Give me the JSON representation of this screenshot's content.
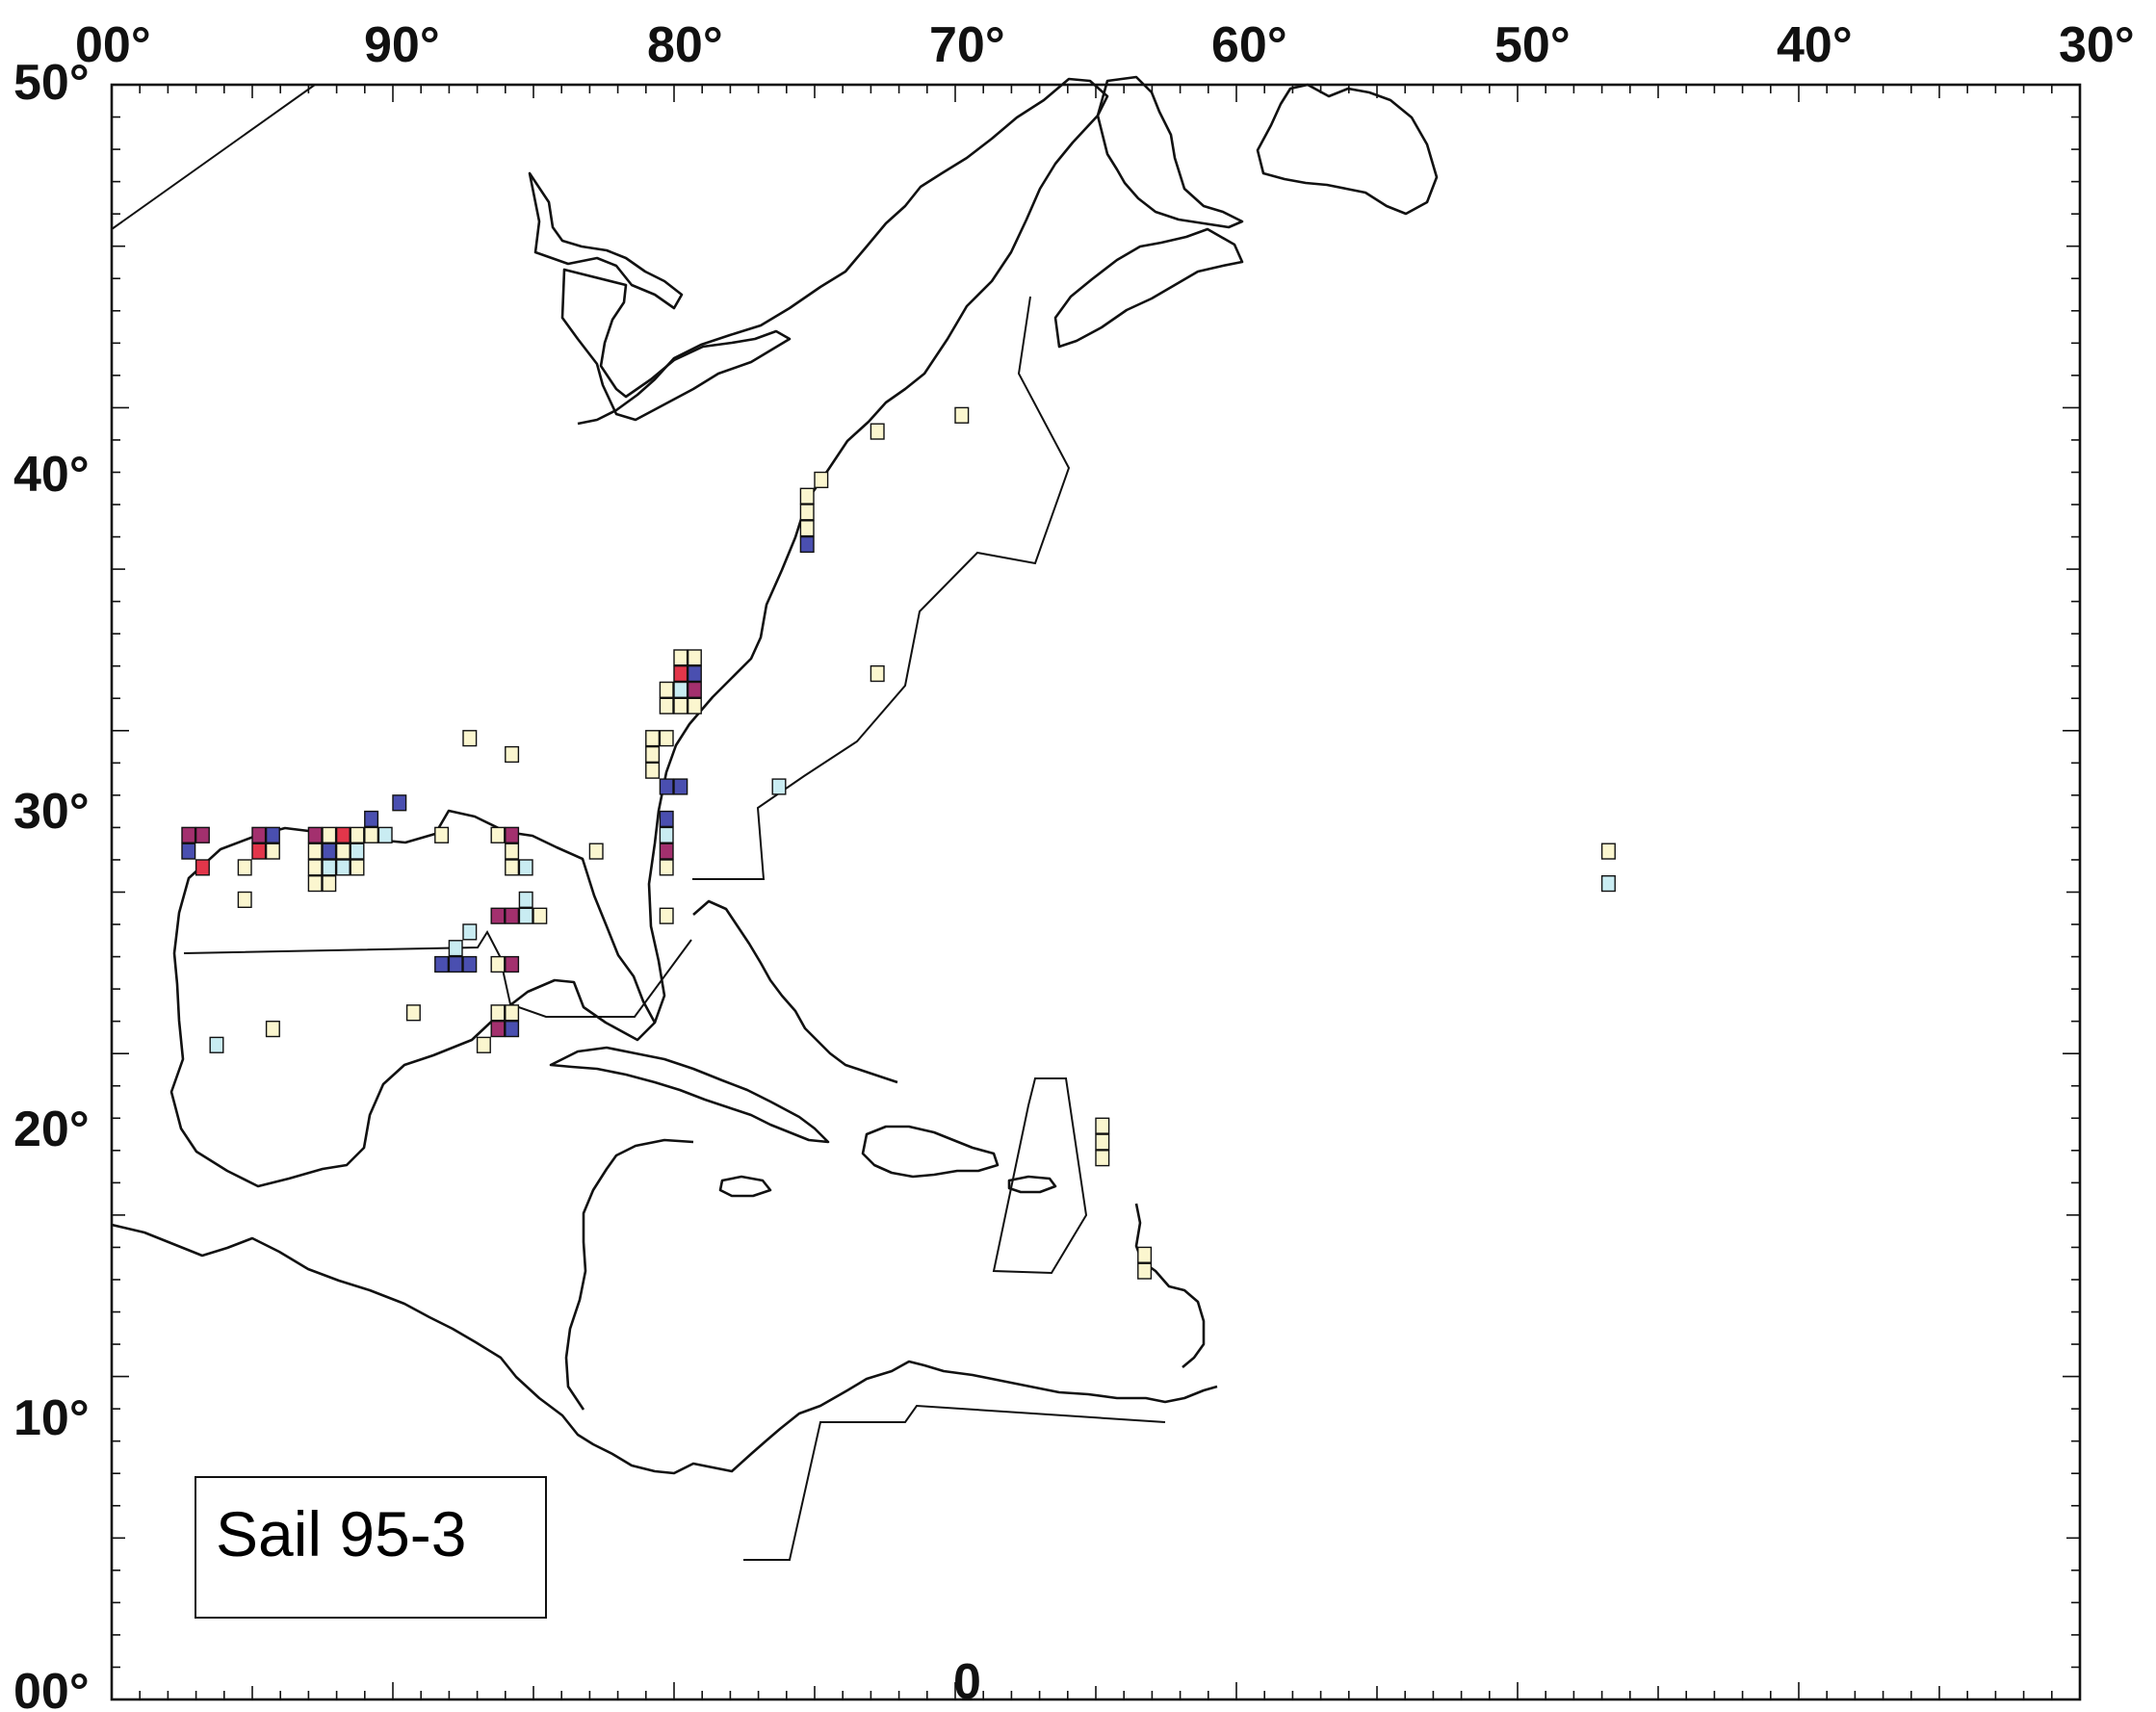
{
  "map": {
    "top_labels": [
      "00°",
      "90°",
      "80°",
      "70°",
      "60°",
      "50°",
      "40°",
      "30°"
    ],
    "left_labels": [
      "50°",
      "40°",
      "30°",
      "20°",
      "10°",
      "00°"
    ],
    "bottom_center_label": "0",
    "legend_title": "Sail 95-3",
    "colors": {
      "pale_yellow": "#fbf6cf",
      "light_blue": "#c9ecf2",
      "blue": "#4a4fb0",
      "red": "#e2364a",
      "magenta": "#a3306e",
      "outline": "#111111"
    }
  },
  "chart_data": {
    "type": "map-grid",
    "extent": {
      "lon": [
        -100,
        -30
      ],
      "lat": [
        0,
        50
      ]
    },
    "cell_size_deg": 0.5,
    "cells": [
      [
        -97.5,
        26.5,
        "magenta"
      ],
      [
        -97,
        26.5,
        "magenta"
      ],
      [
        -97.5,
        26,
        "blue"
      ],
      [
        -97,
        25.5,
        "red"
      ],
      [
        -95,
        26.5,
        "magenta"
      ],
      [
        -94.5,
        26.5,
        "blue"
      ],
      [
        -95,
        26,
        "red"
      ],
      [
        -94.5,
        26,
        "pale_yellow"
      ],
      [
        -95.5,
        25.5,
        "pale_yellow"
      ],
      [
        -93,
        26.5,
        "magenta"
      ],
      [
        -92.5,
        26.5,
        "pale_yellow"
      ],
      [
        -92,
        26.5,
        "red"
      ],
      [
        -91.5,
        26.5,
        "pale_yellow"
      ],
      [
        -93,
        26,
        "pale_yellow"
      ],
      [
        -92.5,
        26,
        "blue"
      ],
      [
        -92,
        26,
        "pale_yellow"
      ],
      [
        -91.5,
        26,
        "light_blue"
      ],
      [
        -93,
        25.5,
        "pale_yellow"
      ],
      [
        -92.5,
        25.5,
        "light_blue"
      ],
      [
        -92,
        25.5,
        "light_blue"
      ],
      [
        -91.5,
        25.5,
        "pale_yellow"
      ],
      [
        -91,
        27,
        "blue"
      ],
      [
        -91,
        26.5,
        "pale_yellow"
      ],
      [
        -90.5,
        26.5,
        "light_blue"
      ],
      [
        -93,
        25,
        "pale_yellow"
      ],
      [
        -92.5,
        25,
        "pale_yellow"
      ],
      [
        -90,
        27.5,
        "blue"
      ],
      [
        -88.5,
        26.5,
        "pale_yellow"
      ],
      [
        -87.5,
        29.5,
        "pale_yellow"
      ],
      [
        -95.5,
        24.5,
        "pale_yellow"
      ],
      [
        -86,
        29,
        "pale_yellow"
      ],
      [
        -86.5,
        26.5,
        "pale_yellow"
      ],
      [
        -86,
        26.5,
        "magenta"
      ],
      [
        -86,
        26,
        "pale_yellow"
      ],
      [
        -86,
        25.5,
        "pale_yellow"
      ],
      [
        -85.5,
        25.5,
        "light_blue"
      ],
      [
        -85.5,
        24.5,
        "light_blue"
      ],
      [
        -85.5,
        24,
        "light_blue"
      ],
      [
        -85,
        24,
        "pale_yellow"
      ],
      [
        -86.5,
        24,
        "magenta"
      ],
      [
        -86,
        24,
        "magenta"
      ],
      [
        -87.5,
        23.5,
        "light_blue"
      ],
      [
        -88,
        23,
        "light_blue"
      ],
      [
        -88.5,
        22.5,
        "blue"
      ],
      [
        -88,
        22.5,
        "blue"
      ],
      [
        -87.5,
        22.5,
        "blue"
      ],
      [
        -86.5,
        22.5,
        "pale_yellow"
      ],
      [
        -86,
        22.5,
        "magenta"
      ],
      [
        -86.5,
        21,
        "pale_yellow"
      ],
      [
        -86,
        21,
        "pale_yellow"
      ],
      [
        -86.5,
        20.5,
        "magenta"
      ],
      [
        -86,
        20.5,
        "blue"
      ],
      [
        -89.5,
        21,
        "pale_yellow"
      ],
      [
        -87,
        20,
        "pale_yellow"
      ],
      [
        -94.5,
        20.5,
        "pale_yellow"
      ],
      [
        -96.5,
        20,
        "light_blue"
      ],
      [
        -83,
        26,
        "pale_yellow"
      ],
      [
        -81,
        29.5,
        "pale_yellow"
      ],
      [
        -80.5,
        29.5,
        "pale_yellow"
      ],
      [
        -81,
        29,
        "pale_yellow"
      ],
      [
        -81,
        28.5,
        "pale_yellow"
      ],
      [
        -80.5,
        28,
        "blue"
      ],
      [
        -80,
        28,
        "blue"
      ],
      [
        -80.5,
        27,
        "blue"
      ],
      [
        -80.5,
        26.5,
        "light_blue"
      ],
      [
        -80.5,
        26,
        "magenta"
      ],
      [
        -80.5,
        25.5,
        "pale_yellow"
      ],
      [
        -80.5,
        24,
        "pale_yellow"
      ],
      [
        -80,
        32,
        "pale_yellow"
      ],
      [
        -79.5,
        32,
        "pale_yellow"
      ],
      [
        -80,
        31.5,
        "red"
      ],
      [
        -79.5,
        31.5,
        "blue"
      ],
      [
        -80.5,
        31,
        "pale_yellow"
      ],
      [
        -80,
        31,
        "light_blue"
      ],
      [
        -79.5,
        31,
        "magenta"
      ],
      [
        -80.5,
        30.5,
        "pale_yellow"
      ],
      [
        -80,
        30.5,
        "pale_yellow"
      ],
      [
        -79.5,
        30.5,
        "pale_yellow"
      ],
      [
        -76.5,
        28,
        "light_blue"
      ],
      [
        -75,
        37.5,
        "pale_yellow"
      ],
      [
        -75.5,
        37,
        "pale_yellow"
      ],
      [
        -75.5,
        36.5,
        "pale_yellow"
      ],
      [
        -75.5,
        36,
        "pale_yellow"
      ],
      [
        -75.5,
        35.5,
        "blue"
      ],
      [
        -73,
        39,
        "pale_yellow"
      ],
      [
        -70,
        39.5,
        "pale_yellow"
      ],
      [
        -73,
        31.5,
        "pale_yellow"
      ],
      [
        -65,
        17.5,
        "pale_yellow"
      ],
      [
        -65,
        17,
        "pale_yellow"
      ],
      [
        -65,
        16.5,
        "pale_yellow"
      ],
      [
        -63.5,
        13.5,
        "pale_yellow"
      ],
      [
        -63.5,
        13,
        "pale_yellow"
      ],
      [
        -47,
        26,
        "pale_yellow"
      ],
      [
        -47,
        25,
        "light_blue"
      ]
    ]
  }
}
